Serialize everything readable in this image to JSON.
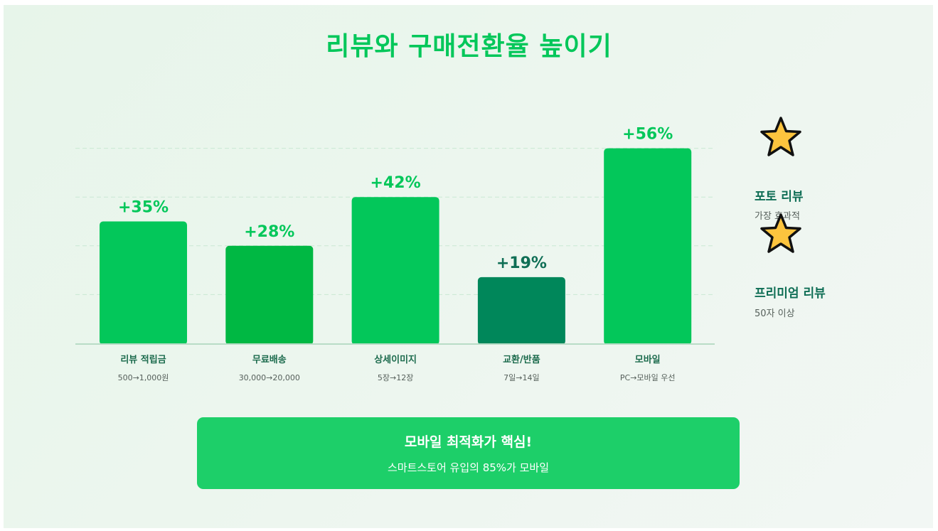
{
  "title": "리뷰와 구매전환율 높이기",
  "chart_data": {
    "type": "bar",
    "categories": [
      "리뷰 적립금",
      "무료배송",
      "상세이미지",
      "교환/반품",
      "모바일"
    ],
    "sublabels": [
      "500→1,000원",
      "30,000→20,000",
      "5장→12장",
      "7일→14일",
      "PC→모바일 우선"
    ],
    "values": [
      35,
      28,
      42,
      19,
      56
    ],
    "value_labels": [
      "+35%",
      "+28%",
      "+42%",
      "+19%",
      "+56%"
    ],
    "bar_colors": [
      "#03c75a",
      "#00b843",
      "#03c75a",
      "#00875a",
      "#03c75a"
    ],
    "label_colors": [
      "#03c75a",
      "#03c75a",
      "#03c75a",
      "#0f6e55",
      "#03c75a"
    ],
    "ylim": [
      0,
      56
    ],
    "grid": true,
    "legend": null
  },
  "side_notes": [
    {
      "icon": "star-icon",
      "title": "포토 리뷰",
      "subtitle": "가장 효과적"
    },
    {
      "icon": "star-icon",
      "title": "프리미엄 리뷰",
      "subtitle": "50자 이상"
    }
  ],
  "banner": {
    "title": "모바일 최적화가 핵심!",
    "subtitle": "스마트스토어 유입의 85%가 모바일"
  },
  "colors": {
    "accent": "#03c75a",
    "dark_green": "#0f6e55",
    "star": "#fcc43e"
  }
}
